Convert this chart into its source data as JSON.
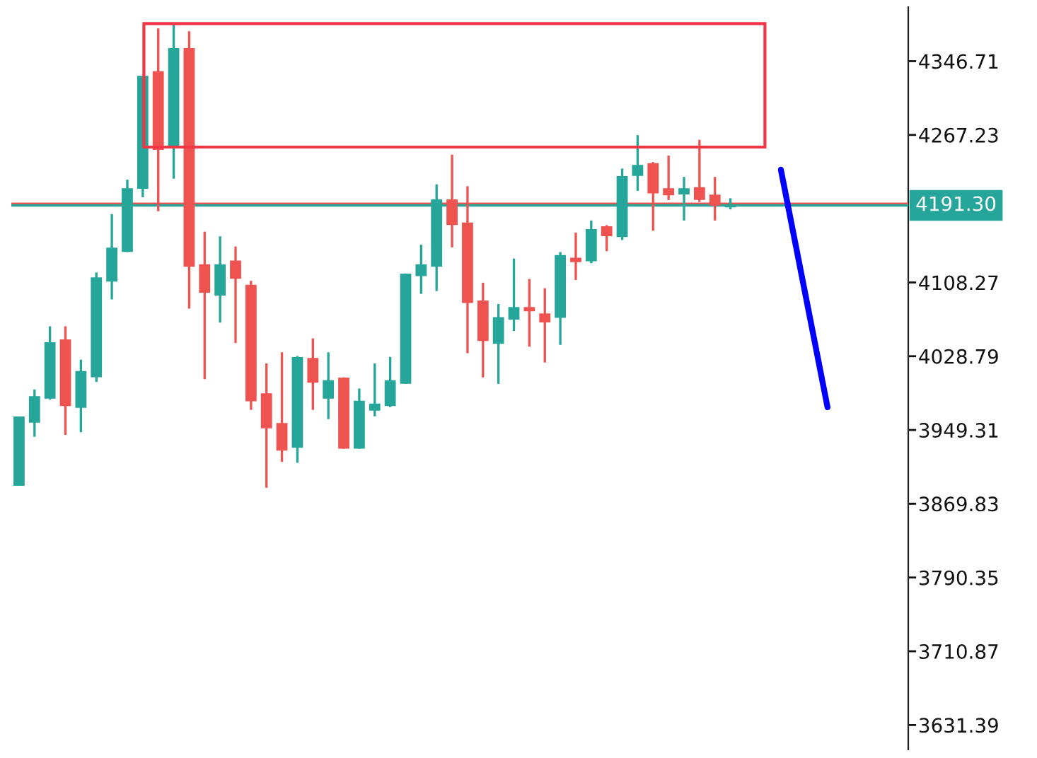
{
  "chart_data": {
    "type": "candlestick",
    "categories": [
      null,
      null,
      null,
      null,
      null,
      null,
      null,
      null,
      null,
      null,
      null,
      null,
      null,
      null,
      null,
      null,
      null,
      null,
      null,
      null,
      null,
      null,
      null,
      null,
      null,
      null,
      null,
      null,
      null,
      null,
      null,
      null,
      null,
      null,
      null,
      null,
      null,
      null,
      null,
      null,
      null,
      null,
      null,
      null,
      null,
      null,
      null,
      null,
      null,
      null,
      null,
      null,
      null,
      null,
      null,
      null,
      null,
      null
    ],
    "ohlc": [
      [
        3890,
        3963,
        3890,
        3963
      ],
      [
        3958,
        3993,
        3942,
        3985
      ],
      [
        3984,
        4061,
        3982,
        4043
      ],
      [
        4046,
        4061,
        3944,
        3976
      ],
      [
        3974,
        4025,
        3947,
        4012
      ],
      [
        4007,
        4119,
        4001,
        4113
      ],
      [
        4110,
        4182,
        4090,
        4145
      ],
      [
        4142,
        4219,
        4141,
        4209
      ],
      [
        4210,
        4330,
        4200,
        4330
      ],
      [
        4335,
        4382,
        4185,
        4252
      ],
      [
        4254,
        4386,
        4220,
        4360
      ],
      [
        4360,
        4379,
        4080,
        4126
      ],
      [
        4127,
        4163,
        4004,
        4098
      ],
      [
        4095,
        4158,
        4065,
        4127
      ],
      [
        4131,
        4147,
        4043,
        4113
      ],
      [
        4105,
        4110,
        3971,
        3981
      ],
      [
        3988,
        4021,
        3887,
        3952
      ],
      [
        3956,
        4033,
        3915,
        3928
      ],
      [
        3931,
        4029,
        3914,
        4027
      ],
      [
        4026,
        4048,
        3971,
        4001
      ],
      [
        3984,
        4033,
        3961,
        4002
      ],
      [
        4005,
        4006,
        3929,
        3930
      ],
      [
        3930,
        3994,
        3929,
        3980
      ],
      [
        3971,
        4021,
        3964,
        3977
      ],
      [
        3976,
        4028,
        3974,
        4002
      ],
      [
        4000,
        4118,
        3999,
        4117
      ],
      [
        4116,
        4149,
        4096,
        4127
      ],
      [
        4126,
        4214,
        4099,
        4197
      ],
      [
        4197,
        4246,
        4146,
        4171
      ],
      [
        4172,
        4212,
        4032,
        4087
      ],
      [
        4088,
        4108,
        4006,
        4046
      ],
      [
        4043,
        4085,
        3999,
        4070
      ],
      [
        4069,
        4134,
        4056,
        4081
      ],
      [
        4081,
        4112,
        4039,
        4078
      ],
      [
        4074,
        4102,
        4022,
        4066
      ],
      [
        4071,
        4141,
        4041,
        4137
      ],
      [
        4134,
        4162,
        4111,
        4131
      ],
      [
        4132,
        4175,
        4129,
        4165
      ],
      [
        4168,
        4170,
        4142,
        4159
      ],
      [
        4158,
        4231,
        4154,
        4222
      ],
      [
        4224,
        4267,
        4207,
        4234
      ],
      [
        4236,
        4238,
        4164,
        4205
      ],
      [
        4209,
        4245,
        4197,
        4203
      ],
      [
        4204,
        4222,
        4175,
        4209
      ],
      [
        4210,
        4262,
        4195,
        4198
      ],
      [
        4202,
        4222,
        4175,
        4192
      ],
      [
        4190,
        4199,
        4187,
        4191
      ],
      null,
      null,
      null,
      null,
      null,
      null,
      null,
      null,
      null,
      null,
      null
    ],
    "colors": [
      "#26a69a",
      "#26a69a",
      "#26a69a",
      "#ef5350",
      "#26a69a",
      "#26a69a",
      "#26a69a",
      "#26a69a",
      "#26a69a",
      "#ef5350",
      "#26a69a",
      "#ef5350",
      "#ef5350",
      "#26a69a",
      "#ef5350",
      "#ef5350",
      "#ef5350",
      "#ef5350",
      "#26a69a",
      "#ef5350",
      "#26a69a",
      "#ef5350",
      "#26a69a",
      "#26a69a",
      "#26a69a",
      "#26a69a",
      "#26a69a",
      "#26a69a",
      "#ef5350",
      "#ef5350",
      "#ef5350",
      "#26a69a",
      "#26a69a",
      "#ef5350",
      "#ef5350",
      "#26a69a",
      "#ef5350",
      "#26a69a",
      "#ef5350",
      "#26a69a",
      "#26a69a",
      "#ef5350",
      "#ef5350",
      "#26a69a",
      "#ef5350",
      "#ef5350",
      "#26a69a",
      null,
      null,
      null,
      null,
      null,
      null,
      null,
      null,
      null,
      null,
      null
    ],
    "ylim": [
      3605,
      4405
    ],
    "yticks": [
      4346.71,
      4267.23,
      4108.27,
      4028.79,
      3949.31,
      3869.83,
      3790.35,
      3710.87,
      3631.39
    ],
    "ref_lines": [
      {
        "axis": "y",
        "value": 4193,
        "color": "#ef5350"
      },
      {
        "axis": "y",
        "value": 4191.3,
        "label": "4191.30",
        "color": "#26a69a"
      }
    ],
    "tick_labels": "y",
    "grid": false,
    "legend": false
  }
}
